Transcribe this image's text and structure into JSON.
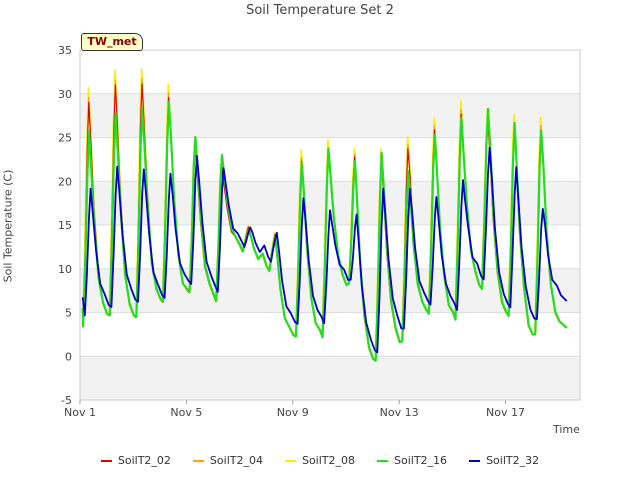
{
  "chart_data": {
    "type": "line",
    "title": "Soil Temperature Set 2",
    "xlabel": "Time",
    "ylabel": "Soil Temperature (C)",
    "site_label": "TW_met",
    "ylim": [
      -5,
      35
    ],
    "yticks": [
      -5,
      0,
      5,
      10,
      15,
      20,
      25,
      30,
      35
    ],
    "xlim": [
      0,
      18.8
    ],
    "xticks": [
      {
        "label": "Nov 1",
        "x": 0
      },
      {
        "label": "Nov 5",
        "x": 4
      },
      {
        "label": "Nov 9",
        "x": 8
      },
      {
        "label": "Nov 13",
        "x": 12
      },
      {
        "label": "Nov 17",
        "x": 16
      }
    ],
    "grid": true,
    "legend_position": "bottom",
    "series": [
      {
        "name": "SoilT2_02",
        "color": "#e00000"
      },
      {
        "name": "SoilT2_04",
        "color": "#ffa500"
      },
      {
        "name": "SoilT2_08",
        "color": "#ffee00"
      },
      {
        "name": "SoilT2_16",
        "color": "#22dd22"
      },
      {
        "name": "SoilT2_32",
        "color": "#0000cc"
      }
    ],
    "daily": [
      {
        "day": 0.3,
        "peak08": 30.5,
        "peak16": 25.5,
        "peak32": 19.0,
        "min16": 3.2,
        "min32": 4.5
      },
      {
        "day": 1.3,
        "peak08": 32.5,
        "peak16": 27.5,
        "peak32": 21.5,
        "min16": 4.5,
        "min32": 5.5
      },
      {
        "day": 2.3,
        "peak08": 33.0,
        "peak16": 28.5,
        "peak32": 21.5,
        "min16": 4.2,
        "min32": 6.0
      },
      {
        "day": 3.3,
        "peak08": 31.0,
        "peak16": 29.0,
        "peak32": 20.8,
        "min16": 6.0,
        "min32": 6.5
      },
      {
        "day": 4.3,
        "peak08": 25.0,
        "peak16": 25.2,
        "peak32": 23.0,
        "min16": 7.0,
        "min32": 8.0
      },
      {
        "day": 5.3,
        "peak08": 22.5,
        "peak16": 23.0,
        "peak32": 21.5,
        "min16": 6.5,
        "min32": 7.5
      },
      {
        "day": 6.3,
        "peak08": 15.0,
        "peak16": 14.5,
        "peak32": 14.8,
        "min16": 12.0,
        "min32": 12.5
      },
      {
        "day": 7.3,
        "peak08": 14.0,
        "peak16": 13.5,
        "peak32": 14.0,
        "min16": 10.0,
        "min32": 11.0
      },
      {
        "day": 8.3,
        "peak08": 23.5,
        "peak16": 22.0,
        "peak32": 18.0,
        "min16": 2.0,
        "min32": 3.5
      },
      {
        "day": 9.3,
        "peak08": 24.5,
        "peak16": 23.5,
        "peak32": 16.5,
        "min16": 2.5,
        "min32": 4.0
      },
      {
        "day": 10.3,
        "peak08": 23.5,
        "peak16": 22.0,
        "peak32": 16.0,
        "min16": 8.0,
        "min32": 8.5
      },
      {
        "day": 11.3,
        "peak08": 23.5,
        "peak16": 23.0,
        "peak32": 19.0,
        "min16": -0.7,
        "min32": 0.3
      },
      {
        "day": 12.3,
        "peak08": 25.0,
        "peak16": 21.0,
        "peak32": 19.0,
        "min16": 1.5,
        "min32": 3.0
      },
      {
        "day": 13.3,
        "peak08": 27.0,
        "peak16": 25.0,
        "peak32": 18.0,
        "min16": 5.0,
        "min32": 6.0
      },
      {
        "day": 14.3,
        "peak08": 29.0,
        "peak16": 27.0,
        "peak32": 20.0,
        "min16": 4.5,
        "min32": 5.5
      },
      {
        "day": 15.3,
        "peak08": 28.5,
        "peak16": 28.5,
        "peak32": 24.0,
        "min16": 8.0,
        "min32": 9.0
      },
      {
        "day": 16.3,
        "peak08": 27.5,
        "peak16": 26.5,
        "peak32": 21.5,
        "min16": 4.5,
        "min32": 5.5
      },
      {
        "day": 17.3,
        "peak08": 27.5,
        "peak16": 26.0,
        "peak32": 17.0,
        "min16": 2.2,
        "min32": 4.0
      }
    ],
    "end": {
      "day": 18.3,
      "v16": 3.5,
      "v32": 6.5
    }
  }
}
